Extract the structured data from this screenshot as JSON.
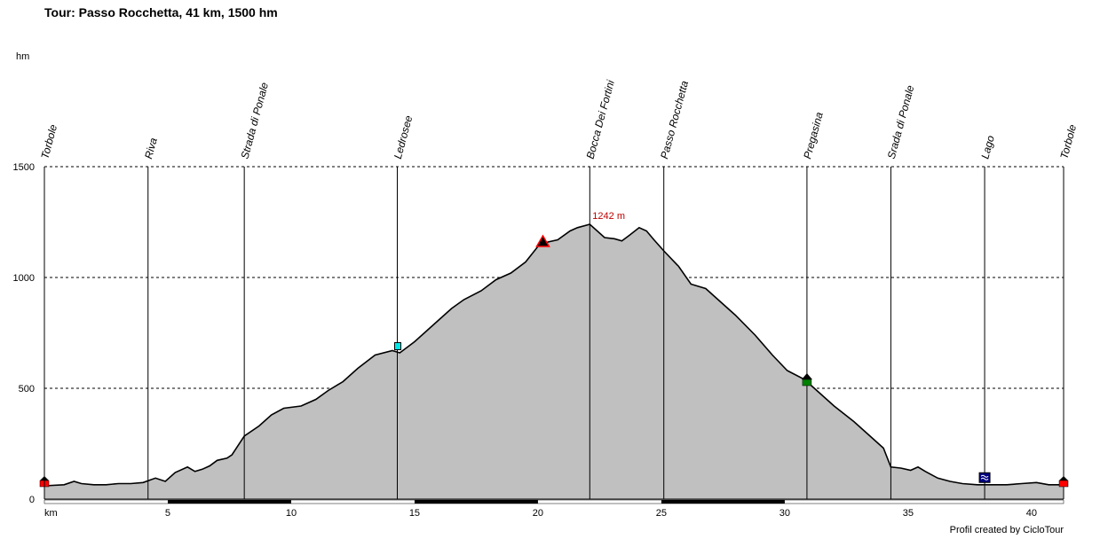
{
  "chart_data": {
    "type": "area",
    "title": "Tour: Passo Rocchetta, 41 km, 1500 hm",
    "ylabel": "hm",
    "xlabel": "km",
    "xlim": [
      0,
      41.3
    ],
    "ylim": [
      0,
      1500
    ],
    "grid": true,
    "y_ticks": [
      "0",
      "500",
      "1000",
      "1500"
    ],
    "x_ticks": [
      "5",
      "10",
      "15",
      "20",
      "25",
      "30",
      "35",
      "40"
    ],
    "x_tick_values": [
      5,
      10,
      15,
      20,
      25,
      30,
      35,
      40
    ],
    "fill_color": "#c0c0c0",
    "line_color": "#000000",
    "profile": {
      "x": [
        0,
        0.8,
        1.2,
        1.5,
        2,
        2.5,
        3,
        3.5,
        4,
        4.5,
        4.9,
        5.3,
        5.8,
        6.1,
        6.4,
        6.7,
        7,
        7.4,
        7.6,
        8.1,
        8.7,
        9.2,
        9.7,
        10.4,
        11,
        11.5,
        12.1,
        12.7,
        13.4,
        14.1,
        14.4,
        15,
        15.5,
        16,
        16.5,
        17,
        17.7,
        18.3,
        18.9,
        19.5,
        20,
        20.4,
        20.8,
        21.3,
        21.6,
        22.1,
        22.7,
        23.1,
        23.4,
        23.7,
        24.1,
        24.4,
        24.7,
        25.1,
        25.7,
        26.2,
        26.8,
        27.3,
        28,
        28.8,
        29.5,
        30.1,
        30.8,
        31.4,
        32,
        32.8,
        33.5,
        34,
        34.3,
        34.7,
        35.1,
        35.4,
        35.7,
        36.2,
        36.7,
        37.2,
        37.8,
        38.4,
        39,
        39.6,
        40.2,
        40.7,
        41.3
      ],
      "y": [
        60,
        65,
        80,
        70,
        65,
        65,
        70,
        70,
        75,
        95,
        80,
        120,
        145,
        125,
        135,
        150,
        175,
        185,
        200,
        285,
        330,
        380,
        410,
        420,
        450,
        490,
        530,
        590,
        650,
        670,
        660,
        710,
        760,
        810,
        860,
        900,
        940,
        990,
        1020,
        1070,
        1140,
        1160,
        1170,
        1210,
        1225,
        1240,
        1180,
        1175,
        1165,
        1190,
        1225,
        1210,
        1170,
        1120,
        1050,
        970,
        950,
        900,
        830,
        740,
        650,
        580,
        540,
        480,
        420,
        350,
        280,
        230,
        145,
        140,
        130,
        145,
        125,
        95,
        80,
        70,
        65,
        65,
        65,
        70,
        75,
        65,
        65
      ]
    },
    "waypoints": [
      {
        "label": "Torbole",
        "km": 0,
        "marker": "red-house",
        "marker_y": 80
      },
      {
        "label": "Riva",
        "km": 4.2
      },
      {
        "label": "Strada di Ponale",
        "km": 8.1
      },
      {
        "label": "Ledrosee",
        "km": 14.3,
        "marker": "cyan-cup",
        "marker_y": 690
      },
      {
        "label": "Bocca Dei Fortini",
        "km": 22.1
      },
      {
        "label": "Passo Rocchetta",
        "km": 25.1
      },
      {
        "label": "Pregasina",
        "km": 30.9,
        "marker": "green-house",
        "marker_y": 540
      },
      {
        "label": "Srada di Ponale",
        "km": 34.3
      },
      {
        "label": "Lago",
        "km": 38.1,
        "marker": "blue-water",
        "marker_y": 95
      },
      {
        "label": "Torbole",
        "km": 41.3,
        "marker": "red-house",
        "marker_y": 80
      }
    ],
    "summit": {
      "label": "1242 m",
      "km": 20.2,
      "marker_y": 1160
    },
    "km_scale_bands": [
      [
        5,
        10
      ],
      [
        15,
        20
      ],
      [
        25,
        30
      ]
    ]
  },
  "credit": "Profil created by CicloTour"
}
